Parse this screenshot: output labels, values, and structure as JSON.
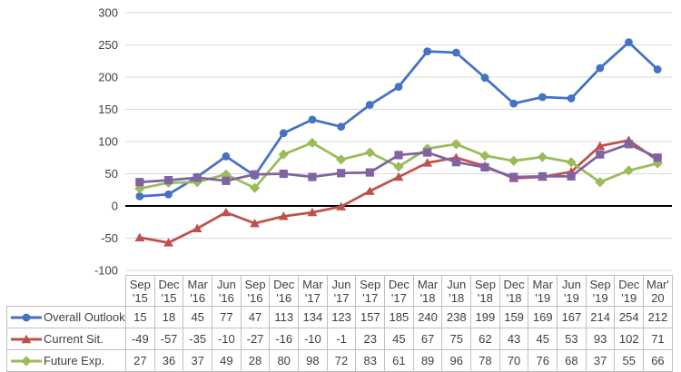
{
  "chart_data": {
    "type": "line",
    "title": "",
    "categories": [
      [
        "Sep",
        "'15"
      ],
      [
        "Dec",
        "'15"
      ],
      [
        "Mar",
        "'16"
      ],
      [
        "Jun",
        "'16"
      ],
      [
        "Sep",
        "'16"
      ],
      [
        "Dec",
        "'16"
      ],
      [
        "Mar",
        "'17"
      ],
      [
        "Jun",
        "'17"
      ],
      [
        "Sep",
        "'17"
      ],
      [
        "Dec",
        "'17"
      ],
      [
        "Mar",
        "'18"
      ],
      [
        "Jun",
        "'18"
      ],
      [
        "Sep",
        "'18"
      ],
      [
        "Dec",
        "'18"
      ],
      [
        "Mar",
        "'19"
      ],
      [
        "Jun",
        "'19"
      ],
      [
        "Sep",
        "'19"
      ],
      [
        "Dec",
        "'19"
      ],
      [
        "Mar'",
        "20"
      ]
    ],
    "series": [
      {
        "name": "Overall Outlook",
        "color": "#4472C4",
        "marker": "circle",
        "in_table": true,
        "values": [
          15,
          18,
          45,
          77,
          47,
          113,
          134,
          123,
          157,
          185,
          240,
          238,
          199,
          159,
          169,
          167,
          214,
          254,
          212
        ]
      },
      {
        "name": "Current Sit.",
        "color": "#C0504D",
        "marker": "triangle",
        "in_table": true,
        "values": [
          -49,
          -57,
          -35,
          -10,
          -27,
          -16,
          -10,
          -1,
          23,
          45,
          67,
          75,
          62,
          43,
          45,
          53,
          93,
          102,
          71
        ]
      },
      {
        "name": "Future Exp.",
        "color": "#9BBB59",
        "marker": "diamond",
        "in_table": true,
        "values": [
          27,
          36,
          37,
          49,
          28,
          80,
          98,
          72,
          83,
          61,
          89,
          96,
          78,
          70,
          76,
          68,
          37,
          55,
          66
        ]
      },
      {
        "name": "",
        "color": "#8064A2",
        "marker": "square",
        "in_table": false,
        "values": [
          37,
          40,
          44,
          39,
          49,
          50,
          45,
          51,
          52,
          79,
          83,
          68,
          60,
          45,
          46,
          46,
          80,
          96,
          75
        ]
      }
    ],
    "y_axis": {
      "min": -100,
      "max": 300,
      "step": 50,
      "ticks": [
        300,
        250,
        200,
        150,
        100,
        50,
        0,
        -50,
        -100
      ]
    },
    "grid": true,
    "legend_position": "table-left",
    "colors": {
      "gridline": "#D9D9D9",
      "zero_line": "#000000",
      "table_border": "#BFBFBF",
      "text": "#404040"
    }
  }
}
